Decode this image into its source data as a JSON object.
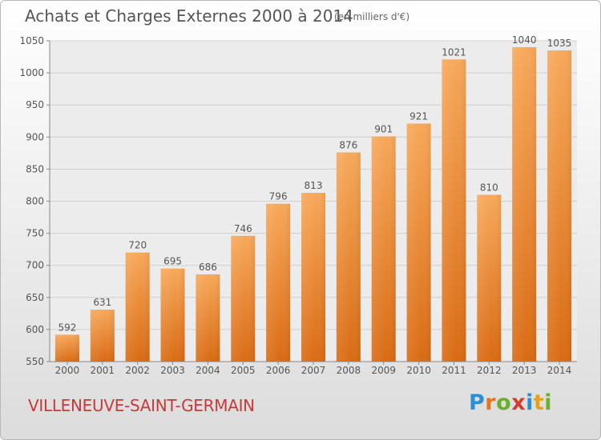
{
  "header": {
    "title": "Achats et Charges Externes 2000 à 2014",
    "unit": "(en milliers d'€)"
  },
  "footer": {
    "commune": "VILLENEUVE-SAINT-GERMAIN",
    "logo": {
      "letters": [
        "P",
        "r",
        "o",
        "x",
        "i",
        "t",
        "i"
      ],
      "colors": [
        "#2a8fd6",
        "#e8731a",
        "#6ab02c",
        "#d43d2a",
        "#2a8fd6",
        "#e8a21a",
        "#6ab02c"
      ]
    }
  },
  "chart_data": {
    "type": "bar",
    "title": "Achats et Charges Externes 2000 à 2014",
    "categories": [
      "2000",
      "2001",
      "2002",
      "2003",
      "2004",
      "2005",
      "2006",
      "2007",
      "2008",
      "2009",
      "2010",
      "2011",
      "2012",
      "2013",
      "2014"
    ],
    "values": [
      592,
      631,
      720,
      695,
      686,
      746,
      796,
      813,
      876,
      901,
      921,
      1021,
      810,
      1040,
      1035
    ],
    "ylim": [
      550,
      1050
    ],
    "yticks": [
      550,
      600,
      650,
      700,
      750,
      800,
      850,
      900,
      950,
      1000,
      1050
    ],
    "grid": true,
    "bar_color": "#f0902f"
  }
}
